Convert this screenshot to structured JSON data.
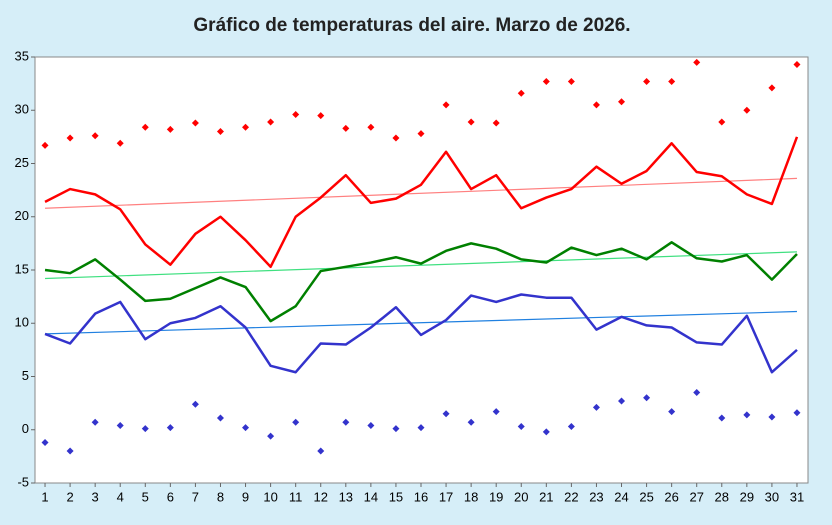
{
  "chart_data": {
    "type": "line",
    "title": "Gráfico de temperaturas del aire. Marzo de 2026.",
    "x": [
      1,
      2,
      3,
      4,
      5,
      6,
      7,
      8,
      9,
      10,
      11,
      12,
      13,
      14,
      15,
      16,
      17,
      18,
      19,
      20,
      21,
      22,
      23,
      24,
      25,
      26,
      27,
      28,
      29,
      30,
      31
    ],
    "xlim": [
      0.6,
      31.44
    ],
    "xticks": [
      1,
      2,
      3,
      4,
      5,
      6,
      7,
      8,
      9,
      10,
      11,
      12,
      13,
      14,
      15,
      16,
      17,
      18,
      19,
      20,
      21,
      22,
      23,
      24,
      25,
      26,
      27,
      28,
      29,
      30,
      31
    ],
    "ylim": [
      -5,
      35
    ],
    "yticks": [
      -5,
      0,
      5,
      10,
      15,
      20,
      25,
      30,
      35
    ],
    "series": [
      {
        "color": "#ff0000",
        "mode": "markers",
        "values": [
          26.7,
          27.4,
          27.6,
          26.9,
          28.4,
          28.2,
          28.8,
          28.0,
          28.4,
          28.9,
          29.6,
          29.5,
          28.3,
          28.4,
          27.4,
          27.8,
          30.5,
          28.9,
          28.8,
          31.6,
          32.7,
          32.7,
          30.5,
          30.8,
          32.7,
          32.7,
          34.5,
          28.9,
          30.0,
          32.1,
          34.3
        ]
      },
      {
        "color": "#ff8080",
        "mode": "trend",
        "x": [
          1,
          31
        ],
        "values": [
          20.8,
          23.6
        ]
      },
      {
        "color": "#40e080",
        "mode": "trend",
        "x": [
          1,
          31
        ],
        "values": [
          14.2,
          16.7
        ]
      },
      {
        "color": "#2080e0",
        "mode": "trend",
        "x": [
          1,
          31
        ],
        "values": [
          9.0,
          11.1
        ]
      },
      {
        "color": "#ff0000",
        "mode": "line",
        "values": [
          21.4,
          22.6,
          22.1,
          20.7,
          17.4,
          15.5,
          18.4,
          20.0,
          17.8,
          15.3,
          20.0,
          21.8,
          23.9,
          21.3,
          21.7,
          23.0,
          26.1,
          22.6,
          23.9,
          20.8,
          21.8,
          22.6,
          24.7,
          23.1,
          24.3,
          26.9,
          24.2,
          23.8,
          22.1,
          21.2,
          27.5
        ]
      },
      {
        "color": "#008000",
        "mode": "line",
        "values": [
          15.0,
          14.7,
          16.0,
          14.1,
          12.1,
          12.3,
          13.3,
          14.3,
          13.4,
          10.2,
          11.6,
          14.9,
          15.3,
          15.7,
          16.2,
          15.6,
          16.8,
          17.5,
          17.0,
          16.0,
          15.7,
          17.1,
          16.4,
          17.0,
          16.0,
          17.6,
          16.1,
          15.8,
          16.4,
          14.1,
          16.5
        ]
      },
      {
        "color": "#3333cc",
        "mode": "line",
        "values": [
          9.0,
          8.1,
          10.9,
          12.0,
          8.5,
          10.0,
          10.5,
          11.6,
          9.6,
          6.0,
          5.4,
          8.1,
          8.0,
          9.6,
          11.5,
          8.9,
          10.3,
          12.6,
          12.0,
          12.7,
          12.4,
          12.4,
          9.4,
          10.6,
          9.8,
          9.6,
          8.2,
          8.0,
          10.7,
          5.4,
          7.5
        ]
      },
      {
        "color": "#3333cc",
        "mode": "markers",
        "values": [
          -1.2,
          -2.0,
          0.7,
          0.4,
          0.1,
          0.2,
          2.4,
          1.1,
          0.2,
          -0.6,
          0.7,
          -2.0,
          0.7,
          0.4,
          0.1,
          0.2,
          1.5,
          0.7,
          1.7,
          0.3,
          -0.2,
          0.3,
          2.1,
          2.7,
          3.0,
          1.7,
          3.5,
          1.1,
          1.4,
          1.2,
          1.6
        ]
      }
    ]
  }
}
